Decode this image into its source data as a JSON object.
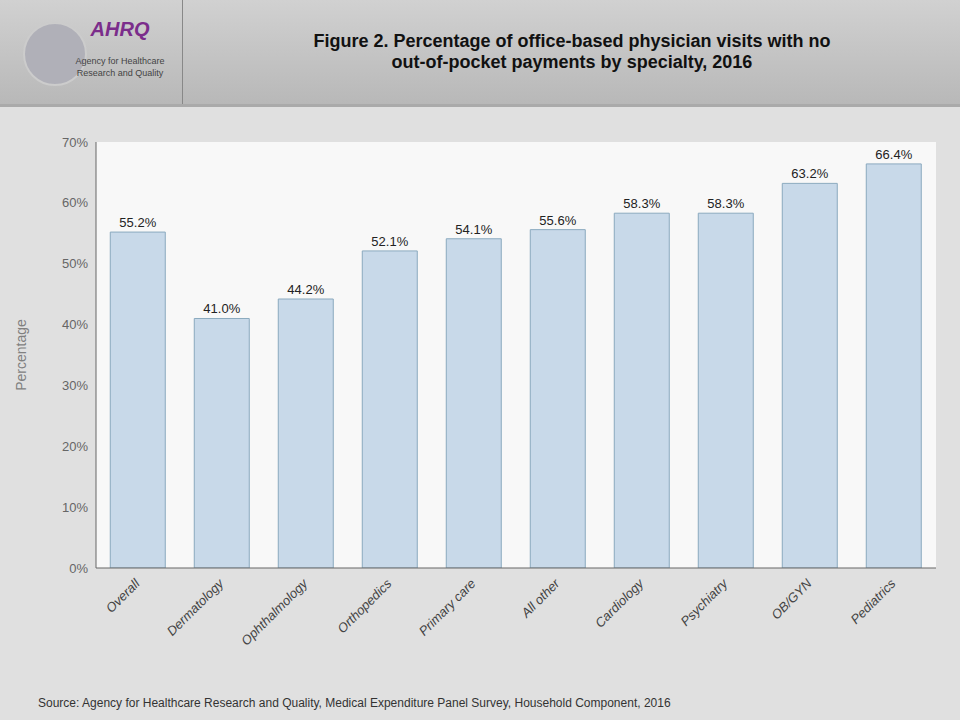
{
  "chart_data": {
    "type": "bar",
    "title": "Figure 2. Percentage of office-based physician visits with no\nout-of-pocket payments by specialty, 2016",
    "ylabel": "Percentage",
    "categories": [
      "Overall",
      "Dermatology",
      "Ophthalmology",
      "Orthopedics",
      "Primary care",
      "All other",
      "Cardiology",
      "Psychiatry",
      "OB/GYN",
      "Pediatrics"
    ],
    "values": [
      55.2,
      41.0,
      44.2,
      52.1,
      54.1,
      55.6,
      58.3,
      58.3,
      63.2,
      66.4
    ],
    "value_labels": [
      "55.2%",
      "41.0%",
      "44.2%",
      "52.1%",
      "54.1%",
      "55.6%",
      "58.3%",
      "58.3%",
      "63.2%",
      "66.4%"
    ],
    "data_labels": true,
    "color": "#c8d9e9",
    "ylim": [
      0,
      70
    ],
    "yticks": [
      {
        "value": 0,
        "label": "0%"
      },
      {
        "value": 10,
        "label": "10%"
      },
      {
        "value": 20,
        "label": "20%"
      },
      {
        "value": 30,
        "label": "30%"
      },
      {
        "value": 40,
        "label": "40%"
      },
      {
        "value": 50,
        "label": "50%"
      },
      {
        "value": 60,
        "label": "60%"
      },
      {
        "value": 70,
        "label": "70%"
      }
    ],
    "grid": false,
    "annotations": [
      "AHRQ",
      "Agency for Healthcare\nResearch and Quality",
      "Source: Agency for Healthcare Research and Quality, Medical Expenditure Panel Survey, Household Component, 2016"
    ]
  }
}
